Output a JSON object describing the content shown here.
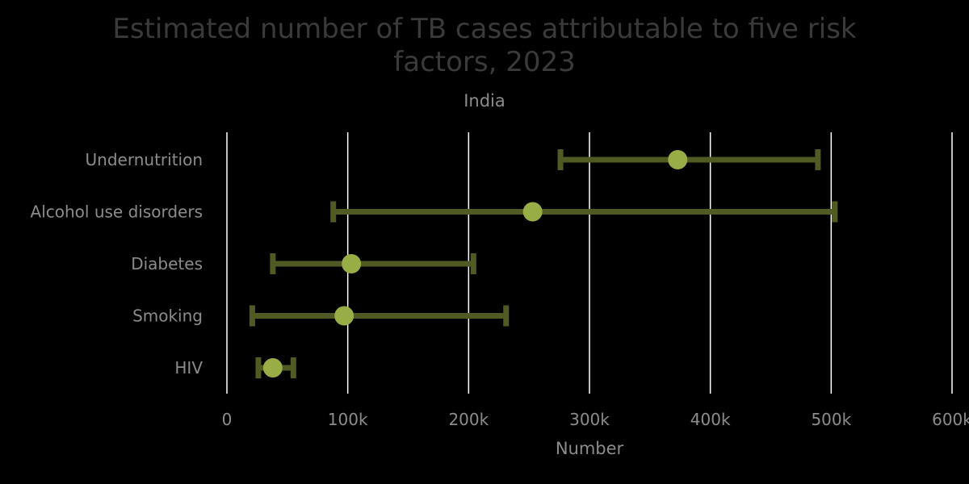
{
  "chart_data": {
    "type": "errorbar",
    "title_lines": [
      "Estimated number of TB cases attributable to five risk",
      "factors, 2023"
    ],
    "subtitle": "India",
    "xlabel": "Number",
    "ylabel": "",
    "xlim": [
      0,
      600000
    ],
    "x_ticks": [
      0,
      100000,
      200000,
      300000,
      400000,
      500000,
      600000
    ],
    "x_tick_labels": [
      "0",
      "100k",
      "200k",
      "300k",
      "400k",
      "500k",
      "600k"
    ],
    "grid": "vertical",
    "categories": [
      "Undernutrition",
      "Alcohol use disorders",
      "Diabetes",
      "Smoking",
      "HIV"
    ],
    "series": [
      {
        "estimates": [
          373000,
          253000,
          103000,
          97000,
          38000
        ],
        "lower": [
          276000,
          88000,
          38000,
          21000,
          26000
        ],
        "upper": [
          489000,
          503000,
          204000,
          231000,
          55000
        ]
      }
    ],
    "colors": {
      "background": "#000000",
      "point": "#98ad46",
      "error_bar": "#4f5b23",
      "grid": "#ffffff",
      "title": "#3a3a3a",
      "text": "#8c8c8c"
    }
  }
}
